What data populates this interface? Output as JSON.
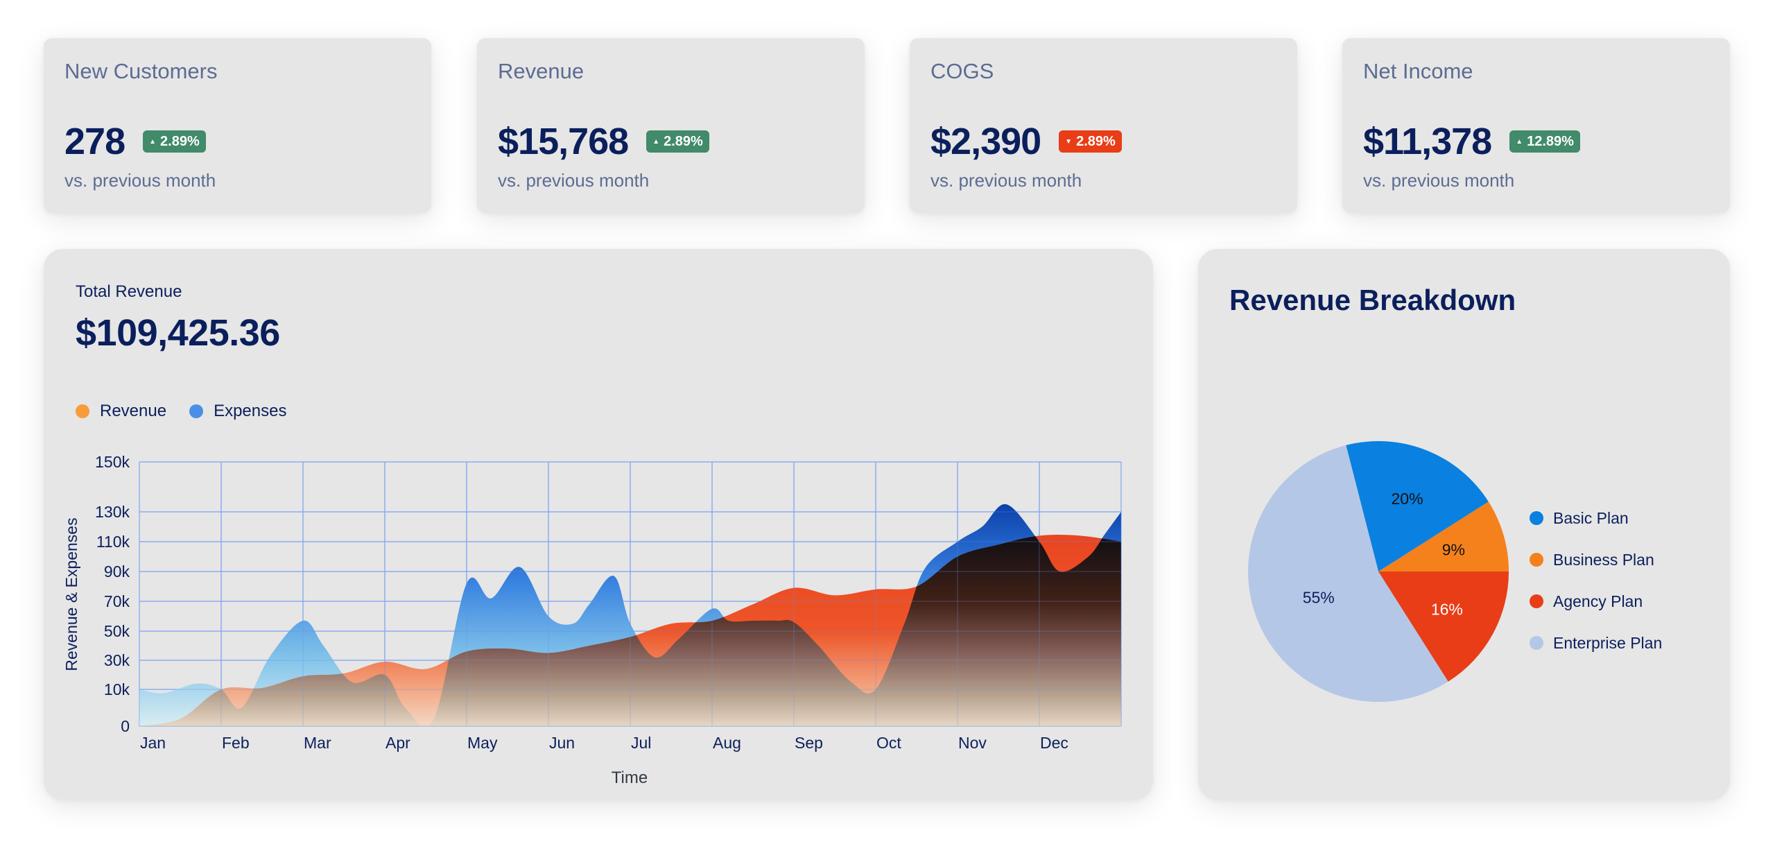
{
  "kpis": [
    {
      "title": "New Customers",
      "value": "278",
      "change": "2.89%",
      "direction": "up",
      "arrow_icon": "triangle-up",
      "subtitle": "vs. previous month"
    },
    {
      "title": "Revenue",
      "value": "$15,768",
      "change": "2.89%",
      "direction": "up",
      "arrow_icon": "triangle-up",
      "subtitle": "vs. previous month"
    },
    {
      "title": "COGS",
      "value": "$2,390",
      "change": "2.89%",
      "direction": "down",
      "arrow_icon": "triangle-down",
      "subtitle": "vs. previous month"
    },
    {
      "title": "Net Income",
      "value": "$11,378",
      "change": "12.89%",
      "direction": "up",
      "arrow_icon": "triangle-up",
      "subtitle": "vs. previous month"
    }
  ],
  "colors": {
    "up": "#418a6a",
    "down": "#e83d17",
    "text_dark": "#0b1f5c",
    "text_muted": "#5c6c92",
    "grid": "#8fb0f0"
  },
  "total_revenue": {
    "label": "Total Revenue",
    "value": "$109,425.36"
  },
  "chart_data": [
    {
      "type": "area",
      "title": "Total Revenue",
      "xlabel": "Time",
      "ylabel": "Revenue & Expenses",
      "x_ticks": [
        "Jan",
        "Feb",
        "Mar",
        "Apr",
        "May",
        "Jun",
        "Jul",
        "Aug",
        "Sep",
        "Oct",
        "Nov",
        "Dec"
      ],
      "y_ticks": [
        "0",
        "10k",
        "30k",
        "50k",
        "70k",
        "90k",
        "110k",
        "130k",
        "150k"
      ],
      "y_tick_values": [
        0,
        10000,
        30000,
        50000,
        70000,
        90000,
        110000,
        130000,
        150000
      ],
      "ylim": [
        0,
        150000
      ],
      "grid": true,
      "legend": "top-left",
      "series": [
        {
          "name": "Revenue",
          "color": "#f89b3a",
          "x": [
            0,
            0.5,
            1,
            1.5,
            2,
            2.5,
            3,
            3.5,
            4,
            4.5,
            5,
            5.5,
            6,
            6.5,
            7,
            7.5,
            8,
            8.5,
            9,
            9.5,
            10,
            10.5,
            11,
            11.5,
            12
          ],
          "values": [
            0,
            2000,
            10000,
            11000,
            19000,
            21000,
            29000,
            24000,
            36000,
            38000,
            35000,
            40000,
            46000,
            55000,
            57000,
            68000,
            79000,
            74000,
            78000,
            80000,
            100000,
            108000,
            114000,
            114000,
            110000
          ]
        },
        {
          "name": "Expenses",
          "color": "#4a8fe7",
          "x": [
            0,
            0.3,
            0.7,
            1,
            1.25,
            1.6,
            2,
            2.25,
            2.6,
            3,
            3.25,
            3.6,
            4,
            4.3,
            4.65,
            5,
            5.3,
            5.5,
            5.8,
            6,
            6.3,
            6.6,
            7,
            7.2,
            7.5,
            7.8,
            8,
            8.3,
            8.7,
            9,
            9.35,
            9.6,
            10,
            10.3,
            10.6,
            11,
            11.25,
            11.6,
            11.8,
            12
          ],
          "values": [
            10000,
            9000,
            14000,
            10000,
            5000,
            33000,
            57000,
            40000,
            15000,
            20000,
            5000,
            2000,
            82000,
            72000,
            93000,
            60000,
            55000,
            68000,
            87000,
            55000,
            32000,
            45000,
            65000,
            57000,
            57000,
            57000,
            56000,
            40000,
            15000,
            10000,
            55000,
            92000,
            110000,
            120000,
            133000,
            110000,
            90000,
            100000,
            115000,
            130000
          ]
        }
      ]
    },
    {
      "type": "pie",
      "title": "Revenue Breakdown",
      "legend": "right",
      "slices": [
        {
          "name": "Business Plan",
          "value": 9,
          "label": "9%",
          "color": "#f4811c",
          "label_color": "#111111"
        },
        {
          "name": "Basic Plan",
          "value": 20,
          "label": "20%",
          "color": "#0a80e0",
          "label_color": "#111111"
        },
        {
          "name": "Enterprise Plan",
          "value": 55,
          "label": "55%",
          "color": "#b5c7e6",
          "label_color": "#0b1f5c"
        },
        {
          "name": "Agency Plan",
          "value": 16,
          "label": "16%",
          "color": "#e83d17",
          "label_color": "#ffffff"
        }
      ],
      "legend_order": [
        "Basic Plan",
        "Business Plan",
        "Agency Plan",
        "Enterprise Plan"
      ]
    }
  ],
  "revenue_breakdown": {
    "title": "Revenue Breakdown"
  }
}
